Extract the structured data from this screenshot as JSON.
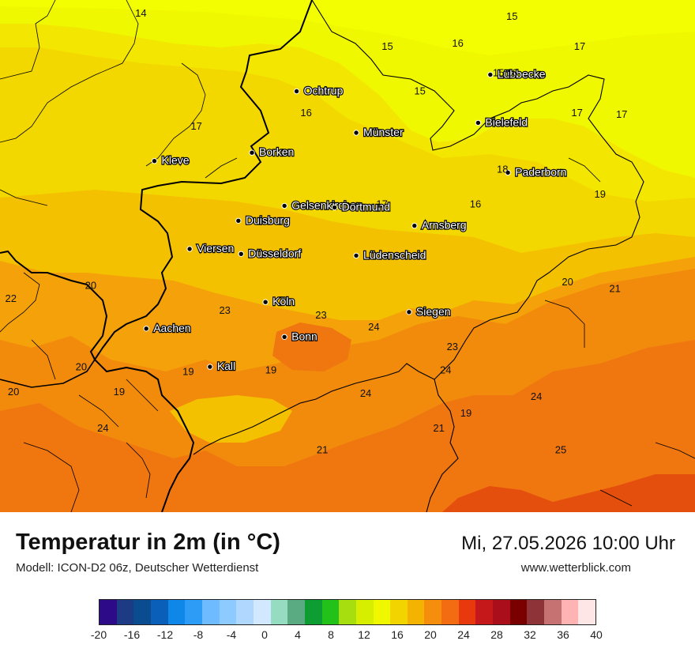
{
  "header": {
    "title": "Temperatur in 2m (in °C)",
    "model": "Modell: ICON-D2 06z, Deutscher Wetterdienst",
    "datetime": "Mi, 27.05.2026 10:00 Uhr",
    "website": "www.wetterblick.com"
  },
  "cities": [
    {
      "name": "Ochtrup",
      "lon": 7.19,
      "lat": 52.21
    },
    {
      "name": "Lübbecke",
      "lon": 8.62,
      "lat": 52.31
    },
    {
      "name": "Bielefeld",
      "lon": 8.53,
      "lat": 52.02
    },
    {
      "name": "Münster",
      "lon": 7.63,
      "lat": 51.96
    },
    {
      "name": "Borken",
      "lon": 6.86,
      "lat": 51.84
    },
    {
      "name": "Kleve",
      "lon": 6.14,
      "lat": 51.79
    },
    {
      "name": "Paderborn",
      "lon": 8.75,
      "lat": 51.72
    },
    {
      "name": "Gelsenkirchen",
      "lon": 7.1,
      "lat": 51.52
    },
    {
      "name": "Dortmund",
      "lon": 7.47,
      "lat": 51.51
    },
    {
      "name": "Duisburg",
      "lon": 6.76,
      "lat": 51.43
    },
    {
      "name": "Arnsberg",
      "lon": 8.06,
      "lat": 51.4
    },
    {
      "name": "Viersen",
      "lon": 6.4,
      "lat": 51.26
    },
    {
      "name": "Düsseldorf",
      "lon": 6.78,
      "lat": 51.23
    },
    {
      "name": "Lüdenscheid",
      "lon": 7.63,
      "lat": 51.22
    },
    {
      "name": "Köln",
      "lon": 6.96,
      "lat": 50.94
    },
    {
      "name": "Siegen",
      "lon": 8.02,
      "lat": 50.88
    },
    {
      "name": "Aachen",
      "lon": 6.08,
      "lat": 50.78
    },
    {
      "name": "Bonn",
      "lon": 7.1,
      "lat": 50.73
    },
    {
      "name": "Kall",
      "lon": 6.55,
      "lat": 50.55
    }
  ],
  "value_labels": [
    {
      "text": "14",
      "lon": 6.04,
      "lat": 52.66
    },
    {
      "text": "15",
      "lon": 8.78,
      "lat": 52.64
    },
    {
      "text": "15",
      "lon": 7.86,
      "lat": 52.46
    },
    {
      "text": "16",
      "lon": 8.38,
      "lat": 52.48
    },
    {
      "text": "17",
      "lon": 9.28,
      "lat": 52.46
    },
    {
      "text": "15",
      "lon": 8.68,
      "lat": 52.3
    },
    {
      "text": "16",
      "lon": 8.78,
      "lat": 52.3
    },
    {
      "text": "15",
      "lon": 8.1,
      "lat": 52.19
    },
    {
      "text": "16",
      "lon": 7.26,
      "lat": 52.06
    },
    {
      "text": "17",
      "lon": 9.26,
      "lat": 52.06
    },
    {
      "text": "17",
      "lon": 9.59,
      "lat": 52.05
    },
    {
      "text": "17",
      "lon": 6.45,
      "lat": 51.98
    },
    {
      "text": "18",
      "lon": 8.71,
      "lat": 51.72
    },
    {
      "text": "19",
      "lon": 9.43,
      "lat": 51.57
    },
    {
      "text": "17",
      "lon": 7.82,
      "lat": 51.51
    },
    {
      "text": "16",
      "lon": 8.51,
      "lat": 51.51
    },
    {
      "text": "20",
      "lon": 9.19,
      "lat": 51.04
    },
    {
      "text": "21",
      "lon": 9.54,
      "lat": 51.0
    },
    {
      "text": "20",
      "lon": 5.67,
      "lat": 51.02
    },
    {
      "text": "22",
      "lon": 5.08,
      "lat": 50.94
    },
    {
      "text": "23",
      "lon": 6.66,
      "lat": 50.87
    },
    {
      "text": "23",
      "lon": 7.37,
      "lat": 50.84
    },
    {
      "text": "24",
      "lon": 7.76,
      "lat": 50.77
    },
    {
      "text": "23",
      "lon": 8.34,
      "lat": 50.65
    },
    {
      "text": "20",
      "lon": 5.6,
      "lat": 50.53
    },
    {
      "text": "19",
      "lon": 6.39,
      "lat": 50.5
    },
    {
      "text": "19",
      "lon": 7.0,
      "lat": 50.51
    },
    {
      "text": "24",
      "lon": 8.29,
      "lat": 50.51
    },
    {
      "text": "20",
      "lon": 5.1,
      "lat": 50.38
    },
    {
      "text": "19",
      "lon": 5.88,
      "lat": 50.38
    },
    {
      "text": "24",
      "lon": 7.7,
      "lat": 50.37
    },
    {
      "text": "24",
      "lon": 8.96,
      "lat": 50.35
    },
    {
      "text": "19",
      "lon": 8.44,
      "lat": 50.25
    },
    {
      "text": "24",
      "lon": 5.76,
      "lat": 50.16
    },
    {
      "text": "21",
      "lon": 8.24,
      "lat": 50.16
    },
    {
      "text": "21",
      "lon": 7.38,
      "lat": 50.03
    },
    {
      "text": "25",
      "lon": 9.14,
      "lat": 50.03
    }
  ],
  "legend": {
    "ticks": [
      "-20",
      "-16",
      "-12",
      "-8",
      "-4",
      "0",
      "4",
      "8",
      "12",
      "16",
      "20",
      "24",
      "28",
      "32",
      "36",
      "40"
    ],
    "colors": [
      "#2d0a87",
      "#1d3a84",
      "#0b4c90",
      "#0a5fb8",
      "#0f87e8",
      "#2d9cf6",
      "#6ebcff",
      "#8ccaff",
      "#b0d8ff",
      "#d2e8ff",
      "#96dcc0",
      "#5aaa82",
      "#0e9d33",
      "#23c21a",
      "#a6de10",
      "#d8ee00",
      "#f0f800",
      "#f1d400",
      "#f4b300",
      "#f58d0d",
      "#f36c12",
      "#e8380d",
      "#c4181a",
      "#a90e1a",
      "#7a0000",
      "#8e3439",
      "#c67272",
      "#ffb3b2",
      "#ffe6e6"
    ]
  },
  "map_colors": {
    "t14": "#f3ff00",
    "t15": "#f0f800",
    "t16": "#f3e600",
    "t17": "#f3d800",
    "t19": "#f4c100",
    "t20": "#f4a10a",
    "t22": "#f28a0c",
    "t24": "#f07610",
    "t25": "#e44f0d"
  }
}
